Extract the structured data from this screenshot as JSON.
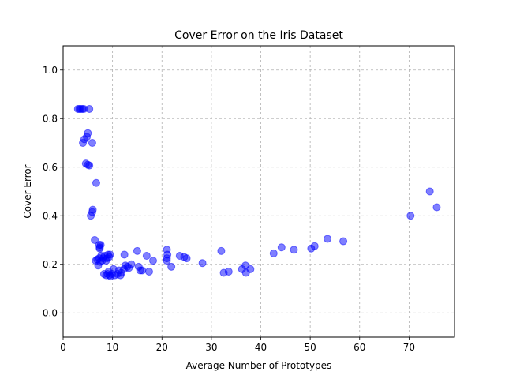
{
  "chart_data": {
    "type": "scatter",
    "title": "Cover Error on the Iris Dataset",
    "xlabel": "Average Number of Prototypes",
    "ylabel": "Cover Error",
    "xlim": [
      0,
      79.2
    ],
    "ylim": [
      -0.1,
      1.1
    ],
    "xticks": [
      0,
      10,
      20,
      30,
      40,
      50,
      60,
      70
    ],
    "yticks": [
      0.0,
      0.2,
      0.4,
      0.6,
      0.8,
      1.0
    ],
    "grid": true,
    "marker_color": "#0000ff",
    "marker_alpha": 0.5,
    "points": [
      [
        3.0,
        0.84
      ],
      [
        3.3,
        0.84
      ],
      [
        3.6,
        0.84
      ],
      [
        3.9,
        0.84
      ],
      [
        4.2,
        0.84
      ],
      [
        5.3,
        0.84
      ],
      [
        4.0,
        0.7
      ],
      [
        4.3,
        0.715
      ],
      [
        4.8,
        0.725
      ],
      [
        5.0,
        0.74
      ],
      [
        5.9,
        0.7
      ],
      [
        4.6,
        0.615
      ],
      [
        5.0,
        0.61
      ],
      [
        5.3,
        0.607
      ],
      [
        6.7,
        0.535
      ],
      [
        5.6,
        0.4
      ],
      [
        5.9,
        0.415
      ],
      [
        6.0,
        0.425
      ],
      [
        6.4,
        0.3
      ],
      [
        7.3,
        0.28
      ],
      [
        7.4,
        0.27
      ],
      [
        7.6,
        0.28
      ],
      [
        7.4,
        0.265
      ],
      [
        6.6,
        0.215
      ],
      [
        6.9,
        0.22
      ],
      [
        7.1,
        0.195
      ],
      [
        7.3,
        0.225
      ],
      [
        7.5,
        0.21
      ],
      [
        7.7,
        0.235
      ],
      [
        7.9,
        0.215
      ],
      [
        8.1,
        0.225
      ],
      [
        8.4,
        0.235
      ],
      [
        8.7,
        0.215
      ],
      [
        8.9,
        0.225
      ],
      [
        9.1,
        0.24
      ],
      [
        9.3,
        0.23
      ],
      [
        9.5,
        0.24
      ],
      [
        8.3,
        0.16
      ],
      [
        8.7,
        0.155
      ],
      [
        9.0,
        0.16
      ],
      [
        9.2,
        0.17
      ],
      [
        9.4,
        0.155
      ],
      [
        9.6,
        0.15
      ],
      [
        9.9,
        0.16
      ],
      [
        10.2,
        0.18
      ],
      [
        10.5,
        0.155
      ],
      [
        11.0,
        0.16
      ],
      [
        11.3,
        0.175
      ],
      [
        11.6,
        0.155
      ],
      [
        11.8,
        0.165
      ],
      [
        12.3,
        0.18
      ],
      [
        12.6,
        0.195
      ],
      [
        13.0,
        0.19
      ],
      [
        13.3,
        0.185
      ],
      [
        12.4,
        0.24
      ],
      [
        13.8,
        0.2
      ],
      [
        15.0,
        0.255
      ],
      [
        15.3,
        0.19
      ],
      [
        15.6,
        0.175
      ],
      [
        16.0,
        0.175
      ],
      [
        16.9,
        0.235
      ],
      [
        17.4,
        0.17
      ],
      [
        18.2,
        0.215
      ],
      [
        21.0,
        0.26
      ],
      [
        21.1,
        0.24
      ],
      [
        21.0,
        0.225
      ],
      [
        21.0,
        0.215
      ],
      [
        21.9,
        0.19
      ],
      [
        23.6,
        0.235
      ],
      [
        24.5,
        0.23
      ],
      [
        25.0,
        0.225
      ],
      [
        28.2,
        0.205
      ],
      [
        32.0,
        0.255
      ],
      [
        32.5,
        0.165
      ],
      [
        33.5,
        0.17
      ],
      [
        36.2,
        0.18
      ],
      [
        36.9,
        0.195
      ],
      [
        37.0,
        0.165
      ],
      [
        37.9,
        0.18
      ],
      [
        42.6,
        0.245
      ],
      [
        44.2,
        0.27
      ],
      [
        46.7,
        0.26
      ],
      [
        50.2,
        0.265
      ],
      [
        50.9,
        0.275
      ],
      [
        53.5,
        0.305
      ],
      [
        56.7,
        0.295
      ],
      [
        70.3,
        0.4
      ],
      [
        74.2,
        0.5
      ],
      [
        75.6,
        0.435
      ]
    ]
  }
}
